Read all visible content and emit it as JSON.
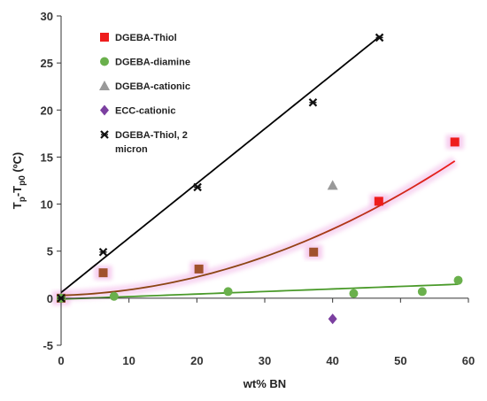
{
  "chart_data": {
    "type": "scatter",
    "title": "",
    "xlabel": "wt% BN",
    "ylabel_main": "T",
    "ylabel_sub1": "p",
    "ylabel_mid": "-T",
    "ylabel_sub2": "p0",
    "ylabel_unit": " (ºC)",
    "xlim": [
      0,
      60
    ],
    "ylim": [
      -5,
      30
    ],
    "x_ticks": [
      0,
      10,
      20,
      30,
      40,
      50,
      60
    ],
    "y_ticks": [
      -5,
      0,
      5,
      10,
      15,
      20,
      25,
      30
    ],
    "x_tick_labels": [
      "0",
      "10",
      "20",
      "30",
      "40",
      "50",
      "60"
    ],
    "y_tick_labels": [
      "-5",
      "0",
      "5",
      "10",
      "15",
      "20",
      "25",
      "30"
    ],
    "grid": false,
    "legend_position": "top-left",
    "series": [
      {
        "name": "DGEBA-Thiol",
        "marker": "square",
        "color": "#ee1c1c",
        "points": [
          [
            0,
            0
          ],
          [
            6.2,
            2.7
          ],
          [
            20.3,
            3.1
          ],
          [
            37.2,
            4.9
          ],
          [
            46.8,
            10.3
          ],
          [
            58,
            16.6
          ]
        ]
      },
      {
        "name": "DGEBA-diamine",
        "marker": "circle",
        "color": "#6ab04c",
        "points": [
          [
            0,
            0
          ],
          [
            7.8,
            0.2
          ],
          [
            24.6,
            0.7
          ],
          [
            43.1,
            0.5
          ],
          [
            53.2,
            0.7
          ],
          [
            58.5,
            1.9
          ]
        ]
      },
      {
        "name": "DGEBA-cationic",
        "marker": "triangle",
        "color": "#999999",
        "points": [
          [
            40,
            12
          ]
        ]
      },
      {
        "name": "ECC-cationic",
        "marker": "diamond",
        "color": "#7b3fa0",
        "points": [
          [
            40,
            -2.2
          ]
        ]
      },
      {
        "name": "DGEBA-Thiol, 2 micron",
        "legend_lines": [
          "DGEBA-Thiol, 2",
          "micron"
        ],
        "marker": "cross",
        "color": "#111111",
        "points": [
          [
            0,
            0
          ],
          [
            6.2,
            4.9
          ],
          [
            20.1,
            11.8
          ],
          [
            37.1,
            20.8
          ],
          [
            46.9,
            27.7
          ]
        ]
      }
    ],
    "fits": [
      {
        "series": "DGEBA-Thiol",
        "kind": "quadratic",
        "coef": [
          0.3,
          0.02,
          0.0039
        ],
        "x_range": [
          0,
          58
        ],
        "colors": [
          "#8b4513",
          "#ee1c1c"
        ]
      },
      {
        "series": "DGEBA-diamine",
        "kind": "linear",
        "coef": [
          -0.1,
          0.027
        ],
        "x_range": [
          0,
          58.5
        ],
        "color": "#4a9a2a"
      },
      {
        "series": "DGEBA-Thiol, 2 micron",
        "kind": "linear",
        "coef": [
          0.6,
          0.58
        ],
        "x_range": [
          0,
          47
        ],
        "color": "#000000"
      }
    ]
  }
}
